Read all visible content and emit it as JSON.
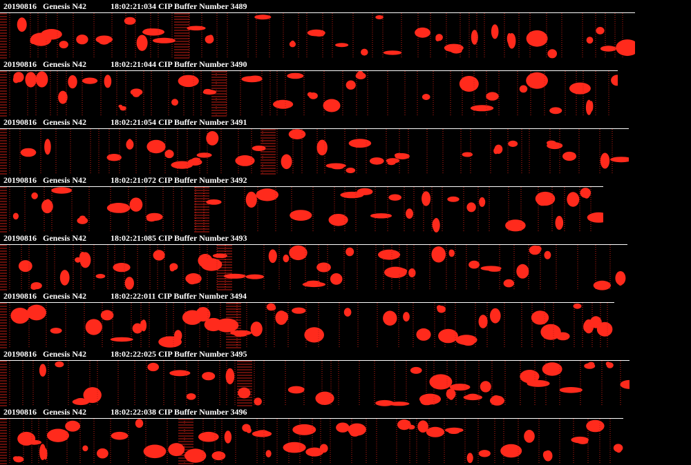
{
  "colors": {
    "background": "#000000",
    "text": "#ffffff",
    "particle": "#ff2a1c",
    "strip_edge": "#c81e14"
  },
  "buffers": [
    {
      "date": "20190816",
      "probe": "Genesis N42",
      "time": "18:02:21:034",
      "label": "CIP Buffer Number 3489"
    },
    {
      "date": "20190816",
      "probe": "Genesis N42",
      "time": "18:02:21:044",
      "label": "CIP Buffer Number 3490"
    },
    {
      "date": "20190816",
      "probe": "Genesis N42",
      "time": "18:02:21:054",
      "label": "CIP Buffer Number 3491"
    },
    {
      "date": "20190816",
      "probe": "Genesis N42",
      "time": "18:02:21:072",
      "label": "CIP Buffer Number 3492"
    },
    {
      "date": "20190816",
      "probe": "Genesis N42",
      "time": "18:02:21:085",
      "label": "CIP Buffer Number 3493"
    },
    {
      "date": "20190816",
      "probe": "Genesis N42",
      "time": "18:02:22:011",
      "label": "CIP Buffer Number 3494"
    },
    {
      "date": "20190816",
      "probe": "Genesis N42",
      "time": "18:02:22:025",
      "label": "CIP Buffer Number 3495"
    },
    {
      "date": "20190816",
      "probe": "Genesis N42",
      "time": "18:02:22:038",
      "label": "CIP Buffer Number 3496"
    }
  ]
}
